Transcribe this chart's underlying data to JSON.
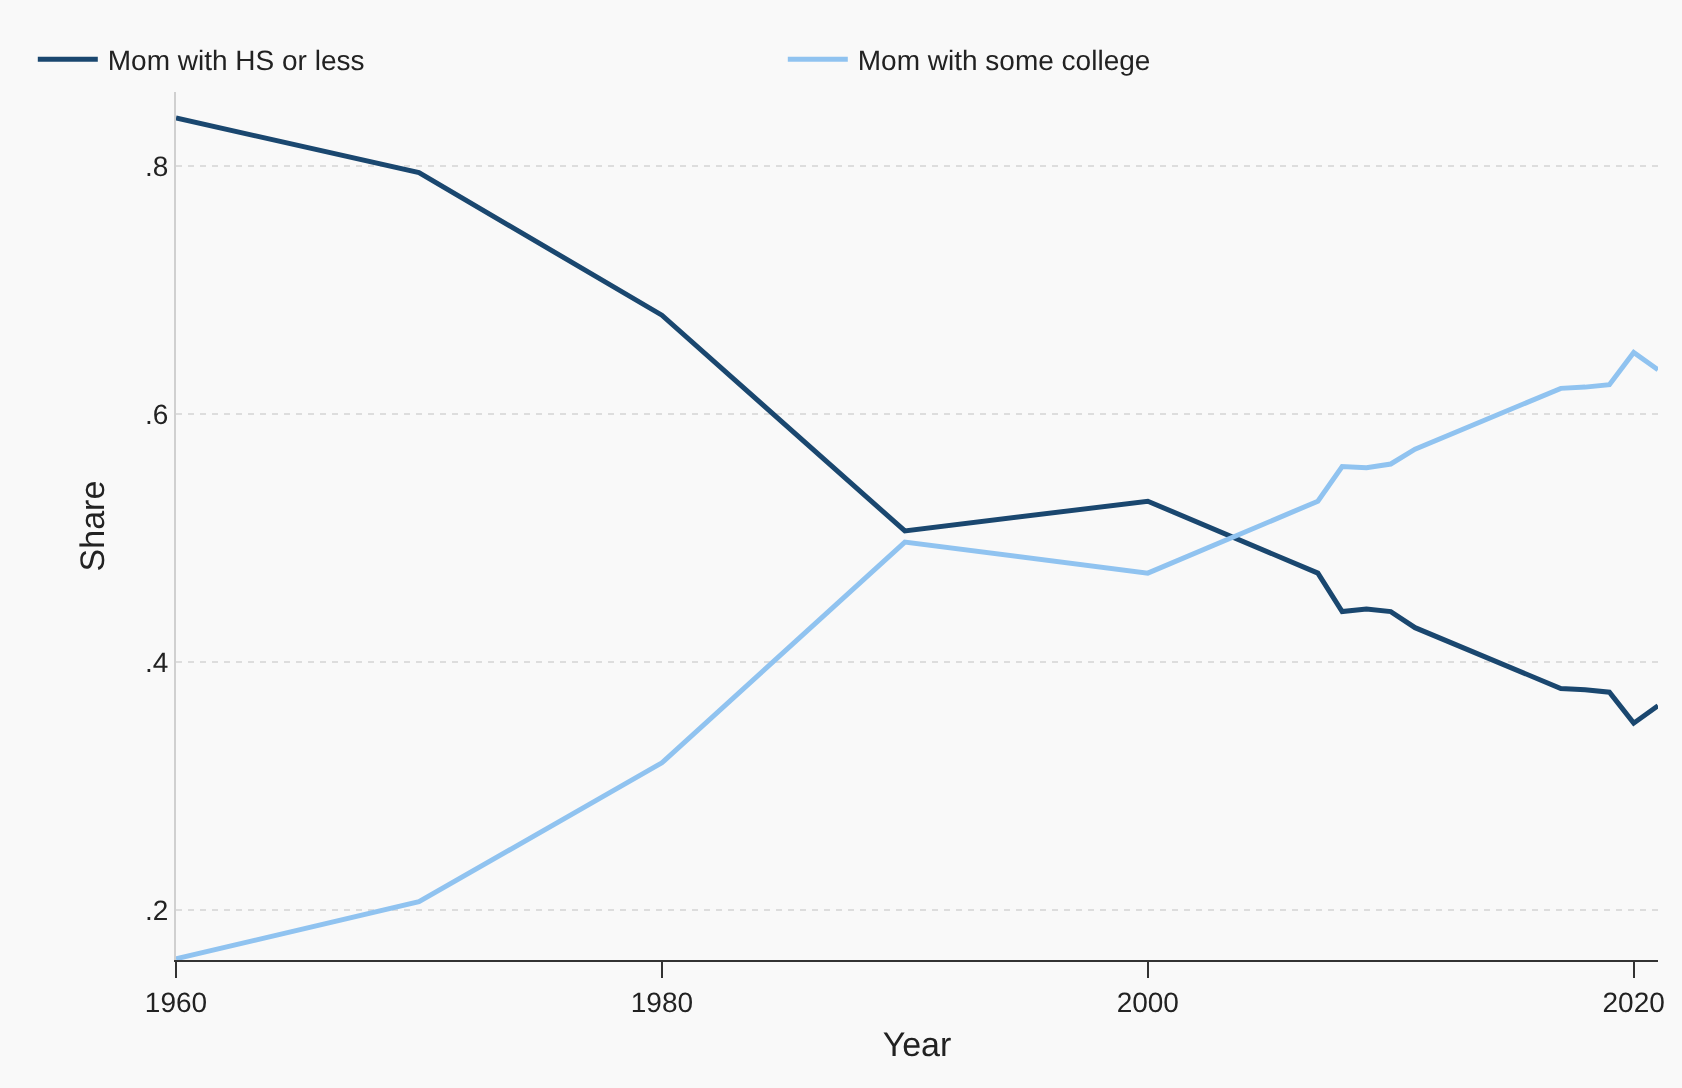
{
  "chart_data": {
    "type": "line",
    "xlabel": "Year",
    "ylabel": "Share",
    "x": [
      1960,
      1970,
      1980,
      1990,
      2000,
      2007,
      2008,
      2009,
      2010,
      2011,
      2017,
      2018,
      2019,
      2020,
      2021
    ],
    "series": [
      {
        "name": "Mom with HS or less",
        "color": "#1a476f",
        "values": [
          0.839,
          0.795,
          0.68,
          0.506,
          0.53,
          0.472,
          0.441,
          0.443,
          0.441,
          0.428,
          0.379,
          0.378,
          0.376,
          0.351,
          0.365
        ]
      },
      {
        "name": "Mom with some college",
        "color": "#90c3f0",
        "values": [
          0.161,
          0.207,
          0.319,
          0.497,
          0.472,
          0.53,
          0.558,
          0.557,
          0.56,
          0.572,
          0.621,
          0.622,
          0.624,
          0.65,
          0.636
        ]
      }
    ],
    "xlim": [
      1960,
      2021
    ],
    "xticks": [
      1960,
      1980,
      2000,
      2020
    ],
    "ylim": [
      0.16,
      0.86
    ],
    "yticks": [
      {
        "value": 0.2,
        "label": ".2"
      },
      {
        "value": 0.4,
        "label": ".4"
      },
      {
        "value": 0.6,
        "label": ".6"
      },
      {
        "value": 0.8,
        "label": ".8"
      }
    ],
    "grid": "y",
    "legend": "top left",
    "marker": "none",
    "line_style": "solid"
  }
}
